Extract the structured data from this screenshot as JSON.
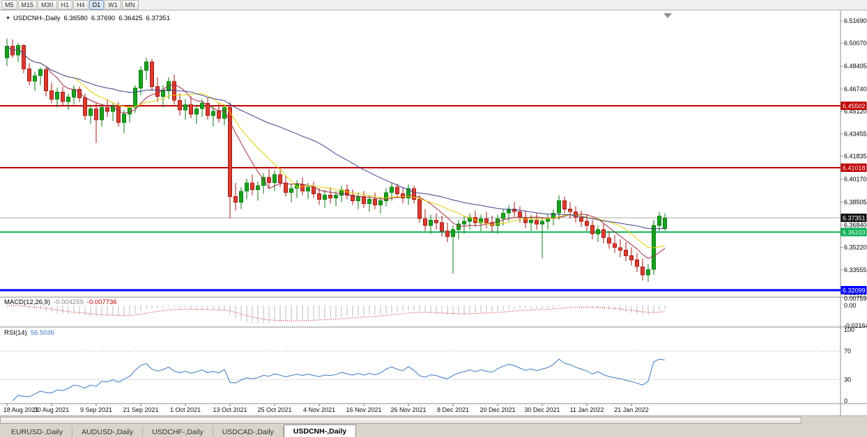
{
  "toolbar": {
    "buttons": [
      {
        "label": "M5",
        "active": false
      },
      {
        "label": "M15",
        "active": false
      },
      {
        "label": "M30",
        "active": false
      },
      {
        "label": "H1",
        "active": false
      },
      {
        "label": "H4",
        "active": false
      },
      {
        "label": "D1",
        "active": true
      },
      {
        "label": "W1",
        "active": false
      },
      {
        "label": "MN",
        "active": false
      }
    ]
  },
  "chart": {
    "legend": {
      "symbol": "USDCNH-,Daily",
      "open": "6.36580",
      "high": "6.37690",
      "low": "6.36425",
      "close": "6.37351"
    },
    "macd_label": {
      "name": "MACD(12,26,9)",
      "main": "-0.004259",
      "signal": "-0.007736"
    },
    "rsi_label": {
      "name": "RSI(14)",
      "value": "56.5036"
    }
  },
  "chart_data": {
    "type": "candlestick",
    "symbol": "USDCNH-",
    "timeframe": "Daily",
    "title": "USDCNH-,Daily",
    "ohlc_current": {
      "open": 6.3658,
      "high": 6.3769,
      "low": 6.36425,
      "close": 6.37351
    },
    "price_range": {
      "top": 6.5245,
      "bottom": 6.31587
    },
    "y_ticks": [
      6.5169,
      6.5007,
      6.48405,
      6.4674,
      6.4512,
      6.43455,
      6.41835,
      6.4017,
      6.38505,
      6.3684,
      6.3522,
      6.33555,
      6.3189
    ],
    "h_lines": [
      {
        "price": 6.45502,
        "label": "6.45502",
        "color": "#C00000",
        "width": 2
      },
      {
        "price": 6.41018,
        "label": "6.41018",
        "color": "#C00000",
        "width": 2
      },
      {
        "price": 6.36333,
        "label": "6.36333",
        "color": "#00B050",
        "width": 2
      },
      {
        "price": 6.32099,
        "label": "6.32099",
        "color": "#0000FF",
        "width": 3
      }
    ],
    "current_price": {
      "value": 6.37351,
      "label": "6.37351",
      "line_color": "#ABABAB",
      "badge_color": "#111111"
    },
    "x_labels": [
      {
        "index": 0,
        "text": "18 Aug 2021"
      },
      {
        "index": 8,
        "text": "30 Aug 2021"
      },
      {
        "index": 16,
        "text": "9 Sep 2021"
      },
      {
        "index": 24,
        "text": "21 Sep 2021"
      },
      {
        "index": 32,
        "text": "1 Oct 2021"
      },
      {
        "index": 40,
        "text": "13 Oct 2021"
      },
      {
        "index": 48,
        "text": "25 Oct 2021"
      },
      {
        "index": 56,
        "text": "4 Nov 2021"
      },
      {
        "index": 64,
        "text": "16 Nov 2021"
      },
      {
        "index": 72,
        "text": "26 Nov 2021"
      },
      {
        "index": 80,
        "text": "8 Dec 2021"
      },
      {
        "index": 88,
        "text": "20 Dec 2021"
      },
      {
        "index": 96,
        "text": "30 Dec 2021"
      },
      {
        "index": 104,
        "text": "11 Jan 2022"
      },
      {
        "index": 112,
        "text": "21 Jan 2022"
      }
    ],
    "candles": [
      [
        6.49,
        6.504,
        6.484,
        6.4985
      ],
      [
        6.4985,
        6.5035,
        6.49,
        6.492
      ],
      [
        6.492,
        6.501,
        6.487,
        6.499
      ],
      [
        6.499,
        6.5,
        6.479,
        6.482
      ],
      [
        6.482,
        6.486,
        6.47,
        6.473
      ],
      [
        6.473,
        6.48,
        6.466,
        6.477
      ],
      [
        6.477,
        6.483,
        6.47,
        6.4815
      ],
      [
        6.4815,
        6.483,
        6.462,
        6.466
      ],
      [
        6.466,
        6.472,
        6.457,
        6.46
      ],
      [
        6.46,
        6.468,
        6.454,
        6.465
      ],
      [
        6.465,
        6.469,
        6.455,
        6.458
      ],
      [
        6.458,
        6.464,
        6.452,
        6.4615
      ],
      [
        6.4615,
        6.47,
        6.456,
        6.467
      ],
      [
        6.467,
        6.469,
        6.458,
        6.461
      ],
      [
        6.461,
        6.464,
        6.445,
        6.448
      ],
      [
        6.448,
        6.456,
        6.442,
        6.453
      ],
      [
        6.453,
        6.458,
        6.428,
        6.445
      ],
      [
        6.445,
        6.456,
        6.44,
        6.454
      ],
      [
        6.454,
        6.46,
        6.447,
        6.451
      ],
      [
        6.451,
        6.457,
        6.444,
        6.455
      ],
      [
        6.455,
        6.458,
        6.44,
        6.443
      ],
      [
        6.443,
        6.452,
        6.435,
        6.449
      ],
      [
        6.449,
        6.456,
        6.443,
        6.454
      ],
      [
        6.454,
        6.47,
        6.45,
        6.468
      ],
      [
        6.468,
        6.484,
        6.463,
        6.481
      ],
      [
        6.481,
        6.49,
        6.474,
        6.487
      ],
      [
        6.487,
        6.489,
        6.466,
        6.469
      ],
      [
        6.469,
        6.476,
        6.458,
        6.462
      ],
      [
        6.462,
        6.47,
        6.454,
        6.466
      ],
      [
        6.466,
        6.476,
        6.46,
        6.473
      ],
      [
        6.473,
        6.478,
        6.456,
        6.459
      ],
      [
        6.459,
        6.464,
        6.448,
        6.452
      ],
      [
        6.452,
        6.46,
        6.445,
        6.456
      ],
      [
        6.456,
        6.462,
        6.446,
        6.449
      ],
      [
        6.449,
        6.456,
        6.442,
        6.453
      ],
      [
        6.453,
        6.46,
        6.447,
        6.457
      ],
      [
        6.457,
        6.461,
        6.445,
        6.448
      ],
      [
        6.448,
        6.455,
        6.44,
        6.451
      ],
      [
        6.451,
        6.457,
        6.443,
        6.446
      ],
      [
        6.446,
        6.456,
        6.441,
        6.454
      ],
      [
        6.454,
        6.458,
        6.373,
        6.389
      ],
      [
        6.389,
        6.399,
        6.379,
        6.385
      ],
      [
        6.385,
        6.396,
        6.38,
        6.393
      ],
      [
        6.393,
        6.402,
        6.387,
        6.399
      ],
      [
        6.399,
        6.405,
        6.39,
        6.394
      ],
      [
        6.394,
        6.4,
        6.386,
        6.397
      ],
      [
        6.397,
        6.406,
        6.391,
        6.403
      ],
      [
        6.403,
        6.409,
        6.395,
        6.399
      ],
      [
        6.399,
        6.408,
        6.393,
        6.405
      ],
      [
        6.405,
        6.41,
        6.396,
        6.399
      ],
      [
        6.399,
        6.404,
        6.389,
        6.392
      ],
      [
        6.392,
        6.398,
        6.385,
        6.395
      ],
      [
        6.395,
        6.401,
        6.388,
        6.398
      ],
      [
        6.398,
        6.403,
        6.39,
        6.393
      ],
      [
        6.393,
        6.399,
        6.387,
        6.396
      ],
      [
        6.396,
        6.4,
        6.388,
        6.391
      ],
      [
        6.391,
        6.395,
        6.383,
        6.387
      ],
      [
        6.387,
        6.394,
        6.381,
        6.39
      ],
      [
        6.39,
        6.396,
        6.384,
        6.388
      ],
      [
        6.388,
        6.393,
        6.382,
        6.39
      ],
      [
        6.39,
        6.397,
        6.385,
        6.394
      ],
      [
        6.394,
        6.398,
        6.387,
        6.39
      ],
      [
        6.39,
        6.394,
        6.383,
        6.386
      ],
      [
        6.386,
        6.392,
        6.38,
        6.389
      ],
      [
        6.389,
        6.393,
        6.381,
        6.384
      ],
      [
        6.384,
        6.39,
        6.378,
        6.387
      ],
      [
        6.387,
        6.392,
        6.38,
        6.383
      ],
      [
        6.383,
        6.389,
        6.377,
        6.386
      ],
      [
        6.386,
        6.395,
        6.382,
        6.392
      ],
      [
        6.392,
        6.399,
        6.386,
        6.396
      ],
      [
        6.396,
        6.3985,
        6.388,
        6.391
      ],
      [
        6.391,
        6.395,
        6.384,
        6.388
      ],
      [
        6.388,
        6.398,
        6.383,
        6.395
      ],
      [
        6.395,
        6.397,
        6.384,
        6.387
      ],
      [
        6.387,
        6.39,
        6.37,
        6.373
      ],
      [
        6.373,
        6.38,
        6.364,
        6.368
      ],
      [
        6.368,
        6.376,
        6.362,
        6.372
      ],
      [
        6.372,
        6.377,
        6.365,
        6.37
      ],
      [
        6.37,
        6.375,
        6.36,
        6.364
      ],
      [
        6.364,
        6.37,
        6.356,
        6.36
      ],
      [
        6.36,
        6.368,
        6.333,
        6.365
      ],
      [
        6.365,
        6.372,
        6.358,
        6.369
      ],
      [
        6.369,
        6.375,
        6.362,
        6.371
      ],
      [
        6.371,
        6.377,
        6.365,
        6.374
      ],
      [
        6.374,
        6.379,
        6.367,
        6.37
      ],
      [
        6.37,
        6.376,
        6.364,
        6.373
      ],
      [
        6.373,
        6.378,
        6.366,
        6.37
      ],
      [
        6.37,
        6.375,
        6.363,
        6.368
      ],
      [
        6.368,
        6.376,
        6.362,
        6.373
      ],
      [
        6.373,
        6.38,
        6.368,
        6.377
      ],
      [
        6.377,
        6.383,
        6.371,
        6.38
      ],
      [
        6.38,
        6.385,
        6.374,
        6.378
      ],
      [
        6.378,
        6.382,
        6.37,
        6.374
      ],
      [
        6.374,
        6.379,
        6.366,
        6.37
      ],
      [
        6.37,
        6.376,
        6.364,
        6.372
      ],
      [
        6.372,
        6.377,
        6.365,
        6.369
      ],
      [
        6.369,
        6.374,
        6.344,
        6.371
      ],
      [
        6.371,
        6.376,
        6.365,
        6.373
      ],
      [
        6.373,
        6.38,
        6.368,
        6.377
      ],
      [
        6.377,
        6.39,
        6.372,
        6.386
      ],
      [
        6.386,
        6.389,
        6.377,
        6.38
      ],
      [
        6.38,
        6.385,
        6.373,
        6.378
      ],
      [
        6.378,
        6.382,
        6.37,
        6.374
      ],
      [
        6.374,
        6.379,
        6.367,
        6.371
      ],
      [
        6.371,
        6.376,
        6.364,
        6.368
      ],
      [
        6.368,
        6.372,
        6.358,
        6.362
      ],
      [
        6.362,
        6.368,
        6.356,
        6.365
      ],
      [
        6.365,
        6.369,
        6.355,
        6.359
      ],
      [
        6.359,
        6.364,
        6.351,
        6.355
      ],
      [
        6.355,
        6.361,
        6.348,
        6.352
      ],
      [
        6.352,
        6.358,
        6.345,
        6.35
      ],
      [
        6.35,
        6.356,
        6.342,
        6.346
      ],
      [
        6.346,
        6.352,
        6.339,
        6.343
      ],
      [
        6.343,
        6.348,
        6.334,
        6.338
      ],
      [
        6.338,
        6.344,
        6.328,
        6.332
      ],
      [
        6.332,
        6.34,
        6.327,
        6.336
      ],
      [
        6.336,
        6.372,
        6.332,
        6.368
      ],
      [
        6.368,
        6.378,
        6.364,
        6.375
      ],
      [
        6.3658,
        6.3769,
        6.36425,
        6.37351
      ]
    ],
    "candle_colors": {
      "up_fill": "#18A31C",
      "up_stroke": "#0B7A10",
      "down_fill": "#DE3B30",
      "down_stroke": "#9E1A12"
    },
    "moving_averages": [
      {
        "name": "ma-fast",
        "period": 8,
        "color": "#A52A3C"
      },
      {
        "name": "ma-mid",
        "period": 13,
        "color": "#E6CE00"
      },
      {
        "name": "ma-slow",
        "period": 34,
        "color": "#3F3F8F"
      }
    ],
    "macd": {
      "params": [
        12,
        26,
        9
      ],
      "main_last": -0.004259,
      "signal_last": -0.007736,
      "axis": {
        "max": 0.00759,
        "zero": 0.0,
        "min": -0.02164
      },
      "axis_labels": [
        "0.00759",
        "0.00",
        "-0.02164"
      ],
      "histogram_color": "#BDBDBD",
      "signal_color": "#D40000"
    },
    "rsi": {
      "period": 14,
      "last": 56.5036,
      "levels": [
        100,
        70,
        30,
        0
      ],
      "guides": [
        70,
        30
      ],
      "line_color": "#3A78C3"
    }
  },
  "tabs": {
    "items": [
      {
        "label": "EURUSD-,Daily",
        "active": false
      },
      {
        "label": "AUDUSD-,Daily",
        "active": false
      },
      {
        "label": "USDCHF-,Daily",
        "active": false
      },
      {
        "label": "USDCAD-,Daily",
        "active": false
      },
      {
        "label": "USDCNH-,Daily",
        "active": true
      }
    ]
  }
}
